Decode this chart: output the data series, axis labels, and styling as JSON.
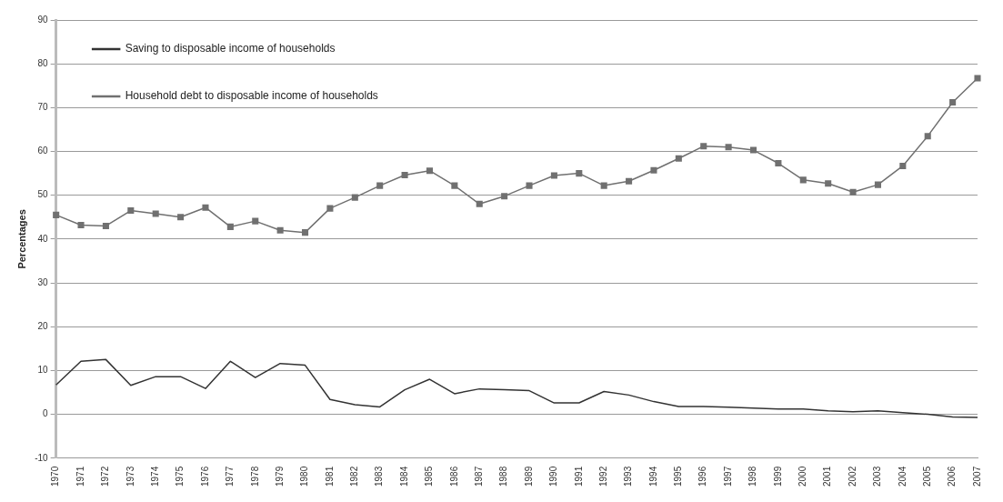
{
  "chart_data": {
    "type": "line",
    "ylabel": "Percentages",
    "categories": [
      "1970",
      "1971",
      "1972",
      "1973",
      "1974",
      "1975",
      "1976",
      "1977",
      "1978",
      "1979",
      "1980",
      "1981",
      "1982",
      "1983",
      "1984",
      "1985",
      "1986",
      "1987",
      "1988",
      "1989",
      "1990",
      "1991",
      "1992",
      "1993",
      "1994",
      "1995",
      "1996",
      "1997",
      "1998",
      "1999",
      "2000",
      "2001",
      "2002",
      "2003",
      "2004",
      "2005",
      "2006",
      "2007"
    ],
    "series": [
      {
        "name": "Saving to disposable income of households",
        "color": "#333333",
        "marker": "none",
        "values": [
          6.7,
          12.1,
          12.5,
          6.6,
          8.6,
          8.6,
          5.9,
          12.1,
          8.4,
          11.6,
          11.2,
          3.4,
          2.2,
          1.7,
          5.6,
          8.0,
          4.7,
          5.8,
          5.6,
          5.4,
          2.6,
          2.6,
          5.2,
          4.4,
          2.9,
          1.8,
          1.8,
          1.6,
          1.4,
          1.2,
          1.2,
          0.8,
          0.6,
          0.8,
          0.4,
          0.0,
          -0.6,
          -0.7
        ]
      },
      {
        "name": "Household debt to disposable income of households",
        "color": "#707070",
        "marker": "square",
        "values": [
          45.5,
          43.2,
          43.0,
          46.5,
          45.8,
          45.0,
          47.2,
          42.8,
          44.1,
          42.0,
          41.5,
          47.0,
          49.5,
          52.2,
          54.6,
          55.6,
          52.2,
          48.0,
          49.8,
          52.2,
          54.5,
          55.0,
          52.2,
          53.2,
          55.7,
          58.4,
          61.2,
          61.0,
          60.3,
          57.3,
          53.5,
          52.7,
          50.7,
          52.4,
          56.7,
          63.5,
          71.2,
          76.7
        ]
      }
    ],
    "ylim": [
      -10,
      90
    ],
    "yticks": [
      -10,
      0,
      10,
      20,
      30,
      40,
      50,
      60,
      70,
      80,
      90
    ],
    "grid": "y",
    "legend": "top left",
    "line_style": "solid"
  }
}
